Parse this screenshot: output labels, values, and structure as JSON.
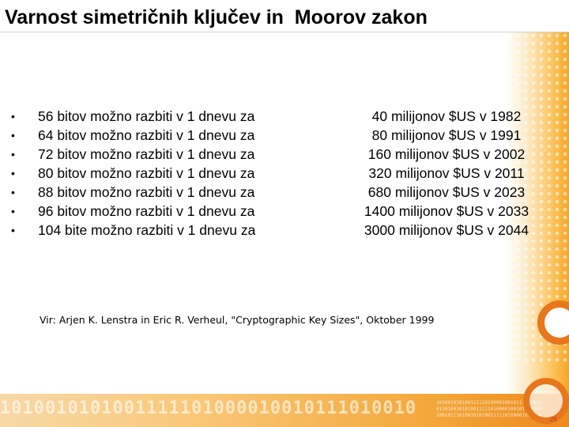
{
  "slide": {
    "title": "Varnost simetričnih ključev in  Moorov zakon",
    "bullet_glyph": "•",
    "items": [
      "56 bitov možno razbiti v 1 dnevu za",
      "64 bitov možno razbiti v 1 dnevu za",
      "72 bitov možno razbiti v 1 dnevu za",
      "80 bitov možno razbiti v 1 dnevu za",
      "88 bitov možno razbiti v 1 dnevu za",
      "96 bitov možno razbiti v 1 dnevu za",
      "104 bite možno razbiti v 1 dnevu za"
    ],
    "costs": [
      "40 milijonov $US v 1982",
      "80 milijonov $US v 1991",
      "160 milijonov $US v 2002",
      "320 milijonov $US v 2011",
      "680 milijonov $US v 2023",
      "1400 milijonov $US v 2033",
      "3000 milijonov $US v 2044"
    ],
    "source": "Vir: Arjen K. Lenstra in Eric R. Verheul, \"Cryptographic Key Sizes\", Oktober 1999",
    "page_number": "26"
  },
  "decoration": {
    "binary_big": "1010010101001111101000010010111010010",
    "binary_small": [
      "1010010101001111101000010010111010010",
      "0110100101010011111010000100101110100",
      "1001011101001010100111110100001001011"
    ]
  },
  "colors": {
    "accent": "#e8761a",
    "panel": "#fbc25a",
    "text": "#000000",
    "page_number": "#c0392b"
  }
}
